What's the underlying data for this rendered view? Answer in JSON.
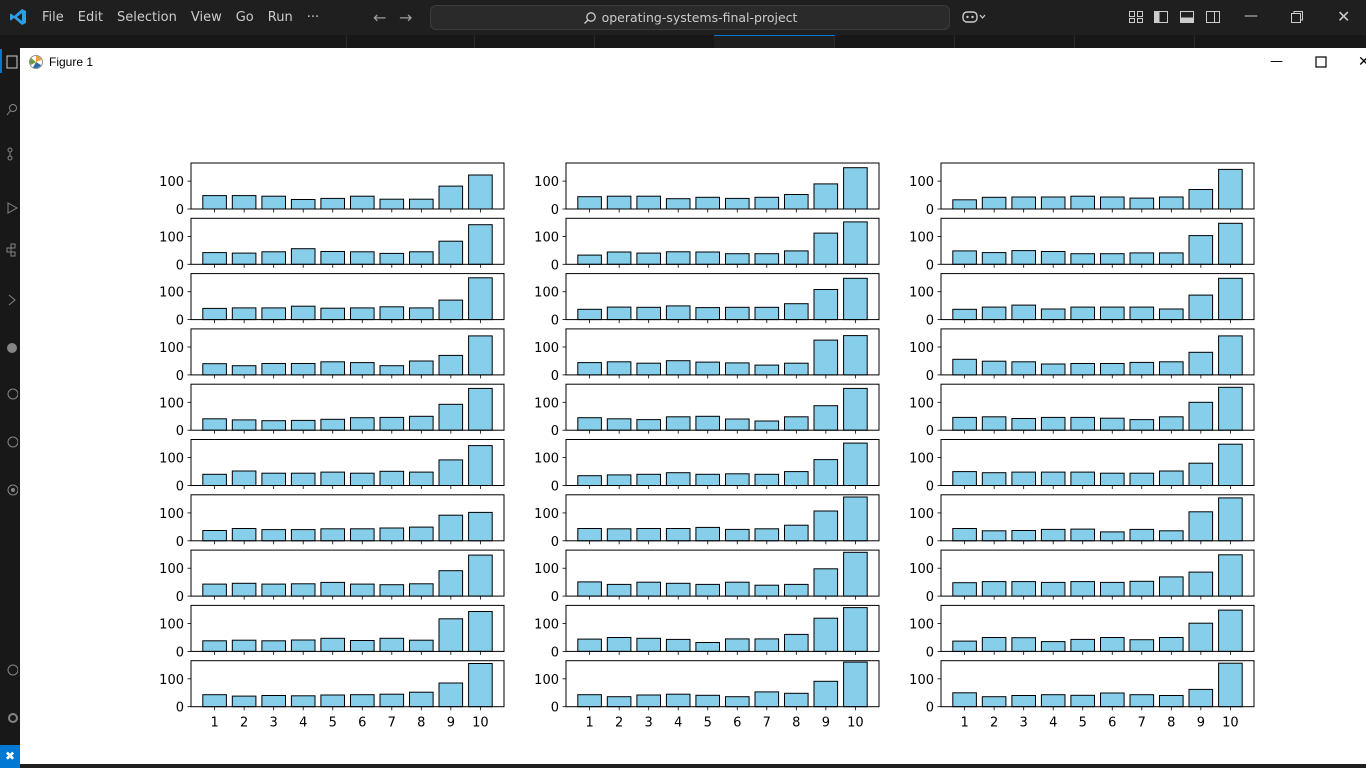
{
  "app": {
    "menu": [
      "File",
      "Edit",
      "Selection",
      "View",
      "Go",
      "Run",
      "···"
    ],
    "search_text": "operating-systems-final-project",
    "accent": "#0078d4"
  },
  "figure_window": {
    "title": "Figure 1",
    "controls": [
      "minimize",
      "maximize",
      "close"
    ]
  },
  "chart_data": {
    "type": "bar",
    "layout": "10 rows x 3 columns of bar subplots",
    "bar_color": "#87ceeb",
    "bar_edge": "#000000",
    "categories": [
      "1",
      "2",
      "3",
      "4",
      "5",
      "6",
      "7",
      "8",
      "9",
      "10"
    ],
    "ytick_labels": [
      "0",
      "100"
    ],
    "ylim": [
      0,
      165
    ],
    "columns": [
      [
        [
          48,
          48,
          46,
          34,
          38,
          46,
          35,
          35,
          82,
          122
        ],
        [
          42,
          40,
          45,
          56,
          46,
          45,
          39,
          45,
          83,
          142
        ],
        [
          40,
          42,
          42,
          48,
          41,
          42,
          46,
          42,
          70,
          150
        ],
        [
          40,
          33,
          41,
          41,
          47,
          44,
          33,
          50,
          70,
          140
        ],
        [
          41,
          37,
          34,
          35,
          39,
          45,
          46,
          50,
          93,
          150
        ],
        [
          40,
          52,
          44,
          44,
          48,
          44,
          51,
          48,
          92,
          143
        ],
        [
          37,
          44,
          40,
          40,
          43,
          43,
          46,
          49,
          92,
          102
        ],
        [
          43,
          46,
          43,
          44,
          49,
          43,
          41,
          44,
          91,
          147
        ],
        [
          38,
          40,
          38,
          41,
          47,
          39,
          47,
          40,
          117,
          143
        ],
        [
          43,
          38,
          40,
          39,
          42,
          43,
          45,
          52,
          85,
          155
        ]
      ],
      [
        [
          44,
          46,
          46,
          37,
          42,
          38,
          42,
          52,
          90,
          148
        ],
        [
          33,
          44,
          40,
          45,
          44,
          38,
          38,
          48,
          112,
          152
        ],
        [
          37,
          45,
          44,
          49,
          43,
          44,
          44,
          57,
          108,
          148
        ],
        [
          44,
          47,
          42,
          51,
          46,
          43,
          35,
          42,
          125,
          141
        ],
        [
          45,
          41,
          38,
          48,
          50,
          40,
          33,
          48,
          88,
          150
        ],
        [
          35,
          38,
          40,
          46,
          40,
          42,
          40,
          50,
          93,
          152
        ],
        [
          44,
          43,
          44,
          44,
          48,
          41,
          43,
          56,
          107,
          157
        ],
        [
          51,
          42,
          50,
          46,
          42,
          50,
          39,
          42,
          98,
          157
        ],
        [
          44,
          50,
          47,
          43,
          32,
          45,
          45,
          61,
          119,
          157
        ],
        [
          43,
          36,
          42,
          45,
          41,
          36,
          53,
          48,
          91,
          160
        ]
      ],
      [
        [
          33,
          42,
          43,
          43,
          46,
          43,
          39,
          43,
          70,
          142
        ],
        [
          48,
          42,
          49,
          46,
          38,
          38,
          41,
          41,
          103,
          147
        ],
        [
          37,
          45,
          52,
          38,
          45,
          45,
          45,
          38,
          88,
          148
        ],
        [
          56,
          49,
          47,
          39,
          41,
          41,
          45,
          47,
          81,
          140
        ],
        [
          46,
          48,
          42,
          46,
          46,
          43,
          38,
          48,
          100,
          154
        ],
        [
          50,
          46,
          48,
          48,
          48,
          44,
          44,
          52,
          80,
          148
        ],
        [
          44,
          36,
          37,
          41,
          42,
          32,
          41,
          36,
          104,
          154
        ],
        [
          48,
          52,
          52,
          49,
          52,
          49,
          53,
          69,
          86,
          148
        ],
        [
          37,
          50,
          49,
          35,
          43,
          50,
          42,
          50,
          101,
          148
        ],
        [
          50,
          36,
          40,
          43,
          41,
          49,
          43,
          40,
          62,
          156
        ]
      ]
    ]
  }
}
